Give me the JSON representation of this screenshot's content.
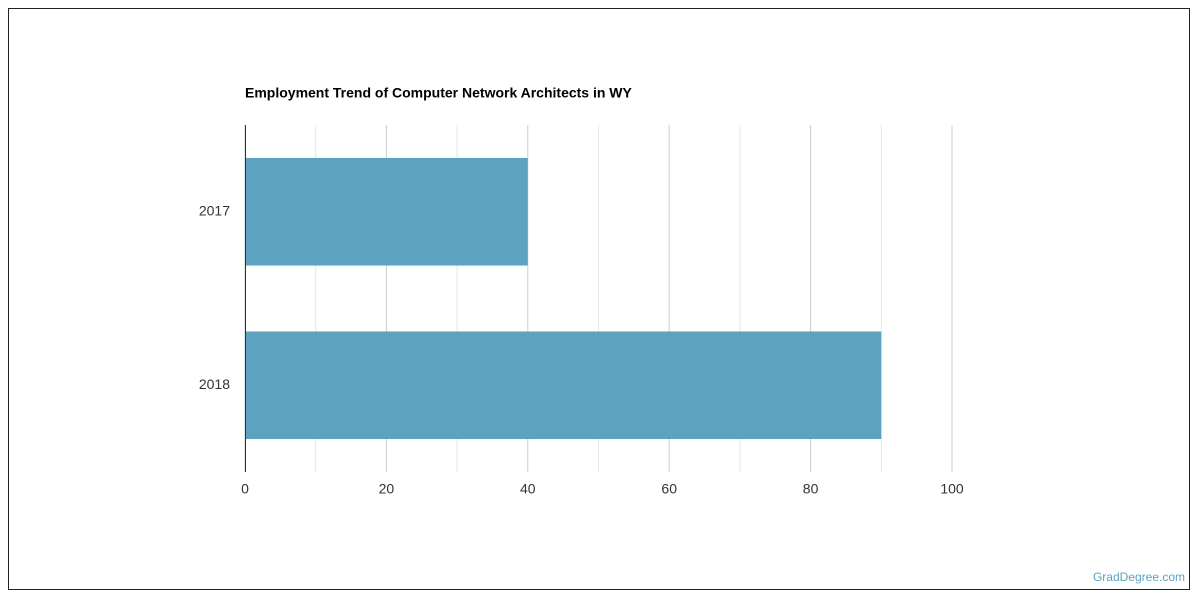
{
  "chart_data": {
    "type": "bar",
    "orientation": "horizontal",
    "title": "Employment Trend of Computer Network Architects in WY",
    "categories": [
      "2017",
      "2018"
    ],
    "values": [
      40,
      90
    ],
    "color": "#5ba3be",
    "xlim": [
      0,
      100
    ],
    "xticks": [
      0,
      20,
      40,
      60,
      80,
      100
    ],
    "minor_xticks": [
      10,
      30,
      50,
      70,
      90
    ],
    "grid": true
  },
  "watermark": "GradDegree.com"
}
